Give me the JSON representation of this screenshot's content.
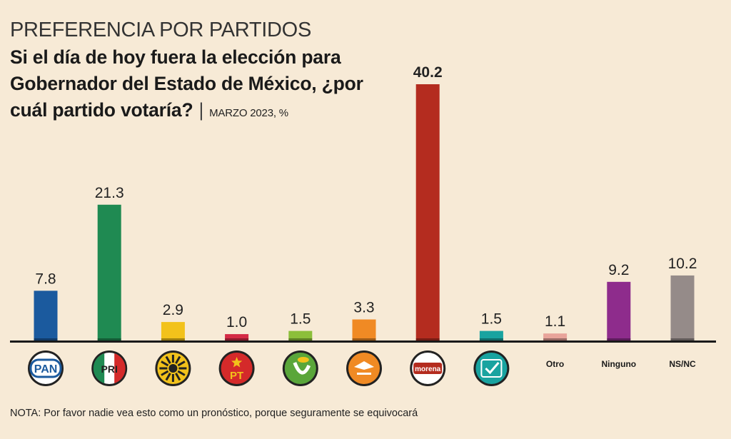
{
  "header": {
    "kicker": "PREFERENCIA POR PARTIDOS",
    "question": "Si el día de hoy fuera la elección para Gobernador del Estado de México, ¿por cuál partido votaría?",
    "meta": "MARZO 2023, %"
  },
  "logos": {
    "pan": "PAN",
    "pri": "PRI",
    "pt": "PT",
    "morena": "morena"
  },
  "footnote": "NOTA: Por favor nadie vea esto como un pronóstico, porque seguramente se equivocará",
  "chart_data": {
    "type": "bar",
    "categories": [
      "PAN",
      "PRI",
      "PRD",
      "PT",
      "PVEM",
      "MC",
      "Morena",
      "Nueva Alianza",
      "Otro",
      "Ninguno",
      "NS/NC"
    ],
    "values": [
      7.8,
      21.3,
      2.9,
      1.0,
      1.5,
      3.3,
      40.2,
      1.5,
      1.1,
      9.2,
      10.2
    ],
    "value_labels": [
      "7.8",
      "21.3",
      "2.9",
      "1.0",
      "1.5",
      "3.3",
      "40.2",
      "1.5",
      "1.1",
      "9.2",
      "10.2"
    ],
    "category_labels_shown": [
      "",
      "",
      "",
      "",
      "",
      "",
      "",
      "",
      "Otro",
      "Ninguno",
      "NS/NC"
    ],
    "colors": [
      "#1b5a9e",
      "#1f8a52",
      "#f2c21b",
      "#d42a45",
      "#8cbf3a",
      "#f08a24",
      "#b42c1f",
      "#19a3a0",
      "#e8a49a",
      "#8e2c8c",
      "#958b89"
    ],
    "icons": [
      "pan-logo-icon",
      "pri-logo-icon",
      "prd-sun-icon",
      "pt-star-icon",
      "pvem-toucan-icon",
      "mc-eagle-icon",
      "morena-logo-icon",
      "nueva-alianza-icon",
      null,
      null,
      null
    ],
    "ylim": [
      0,
      40.2
    ],
    "grid": false,
    "legend": "none",
    "ylabel": "%"
  }
}
